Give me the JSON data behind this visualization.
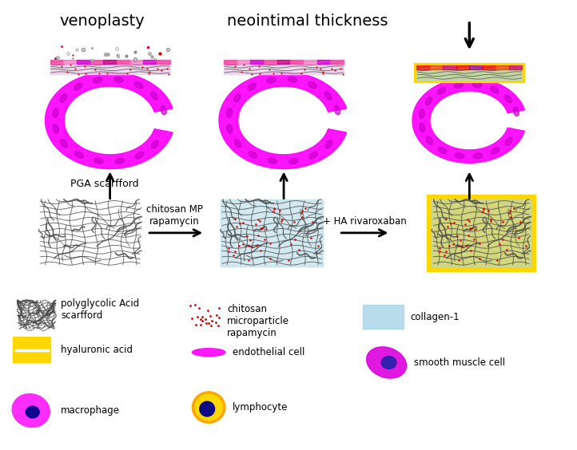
{
  "bg_color": "#ffffff",
  "fig_width": 7.22,
  "fig_height": 5.64,
  "dpi": 100,
  "labels": {
    "venoplasty": "venoplasty",
    "neointimal": "neointimal thickness",
    "pga": "PGA scarfford",
    "chitosan_mp": "chitosan MP\nrapamycin",
    "ha_rivaroxaban": "+ HA rivaroxaban",
    "legend_pga": "polyglycolic Acid\nscarfford",
    "legend_chitosan": "chitosan\nmicroparticle\nrapamycin",
    "legend_collagen": "collagen-1",
    "legend_ha": "hyaluronic acid",
    "legend_endothelial": "endothelial cell",
    "legend_smooth": "smooth muscle cell",
    "legend_macrophage": "macrophage",
    "legend_lymphocyte": "lymphocyte"
  },
  "colors": {
    "magenta": "#FF00FF",
    "magenta_dark": "#CC00CC",
    "magenta_mid": "#EE00EE",
    "blue_light": "#ADD8E6",
    "blue_collagen": "#A8D4E8",
    "yellow": "#FFD700",
    "red_dot": "#CC0000",
    "gray_scaffold": "#666666",
    "gray_dark": "#444444",
    "orange_lymph": "#FFA500",
    "yellow_lymph": "#FFD700",
    "blue_nucleus": "#00008B",
    "white": "#FFFFFF"
  }
}
